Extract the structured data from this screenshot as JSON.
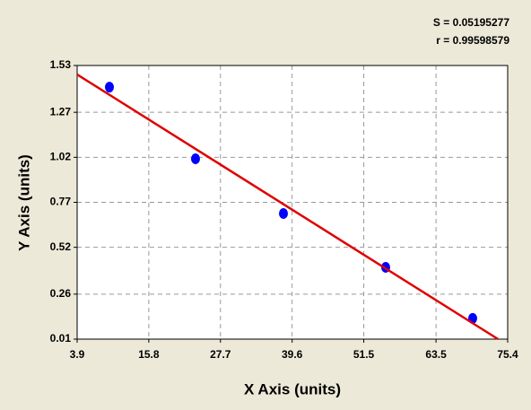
{
  "chart_data": {
    "type": "scatter",
    "annotations": [
      "S = 0.05195277",
      "r = 0.99598579"
    ],
    "x_label": "X Axis (units)",
    "y_label": "Y Axis (units)",
    "xlim": [
      3.9,
      75.4
    ],
    "xticks": [
      3.9,
      15.8,
      27.7,
      39.6,
      51.5,
      63.5,
      75.4
    ],
    "ylim": [
      0.01,
      1.53
    ],
    "yticks": [
      0.01,
      0.26,
      0.52,
      0.77,
      1.02,
      1.27,
      1.53
    ],
    "grid": true,
    "series": [
      {
        "color": "#0000ff",
        "x": [
          9.26,
          23.56,
          38.16,
          55.14,
          69.59
        ],
        "values": [
          1.41,
          1.012,
          0.708,
          0.409,
          0.125
        ]
      }
    ],
    "fit": {
      "color": "#e00000",
      "x": [
        3.9,
        73.8
      ],
      "values": [
        1.48,
        0.01
      ]
    }
  }
}
